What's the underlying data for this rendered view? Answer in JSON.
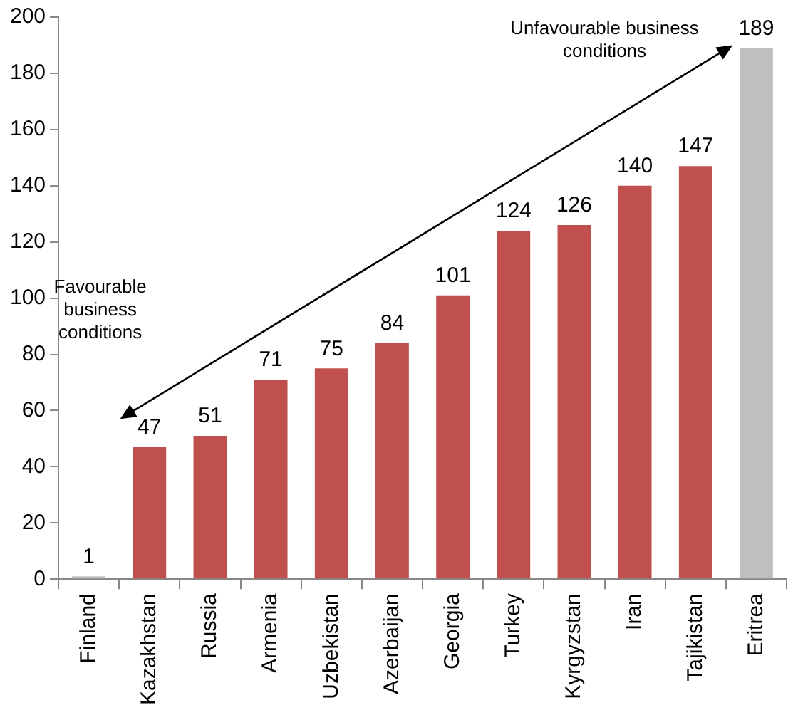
{
  "chart_data": {
    "type": "bar",
    "categories": [
      "Finland",
      "Kazakhstan",
      "Russia",
      "Armenia",
      "Uzbekistan",
      "Azerbaijan",
      "Georgia",
      "Turkey",
      "Kyrgyzstan",
      "Iran",
      "Tajikistan",
      "Eritrea"
    ],
    "values": [
      1,
      47,
      51,
      71,
      75,
      84,
      101,
      124,
      126,
      140,
      147,
      189
    ],
    "colors": [
      "#bfbfbf",
      "#c0504d",
      "#c0504d",
      "#c0504d",
      "#c0504d",
      "#c0504d",
      "#c0504d",
      "#c0504d",
      "#c0504d",
      "#c0504d",
      "#c0504d",
      "#bfbfbf"
    ],
    "ylim": [
      0,
      200
    ],
    "yticks": [
      0,
      20,
      40,
      60,
      80,
      100,
      120,
      140,
      160,
      180,
      200
    ],
    "grid": false,
    "legend": false,
    "data_labels": true,
    "annotations": [
      "Favourable business conditions",
      "Unfavourable business conditions"
    ]
  }
}
